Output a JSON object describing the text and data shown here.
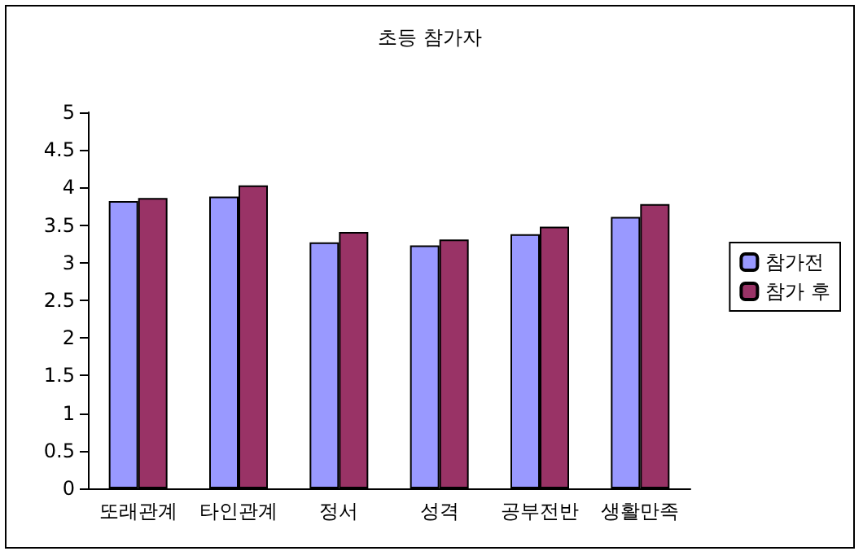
{
  "chart_data": {
    "type": "bar",
    "title": "초등 참가자",
    "categories": [
      "또래관계",
      "타인관계",
      "정서",
      "성격",
      "공부전반",
      "생활만족"
    ],
    "series": [
      {
        "name": "참가전",
        "color": "#9999ff",
        "values": [
          3.82,
          3.88,
          3.27,
          3.23,
          3.38,
          3.61
        ]
      },
      {
        "name": "참가 후",
        "color": "#993366",
        "values": [
          3.86,
          4.03,
          3.41,
          3.31,
          3.48,
          3.78
        ]
      }
    ],
    "ylim": [
      0,
      5
    ],
    "yticks": [
      0,
      0.5,
      1,
      1.5,
      2,
      2.5,
      3,
      3.5,
      4,
      4.5,
      5
    ],
    "grid": false,
    "legend": "right"
  }
}
